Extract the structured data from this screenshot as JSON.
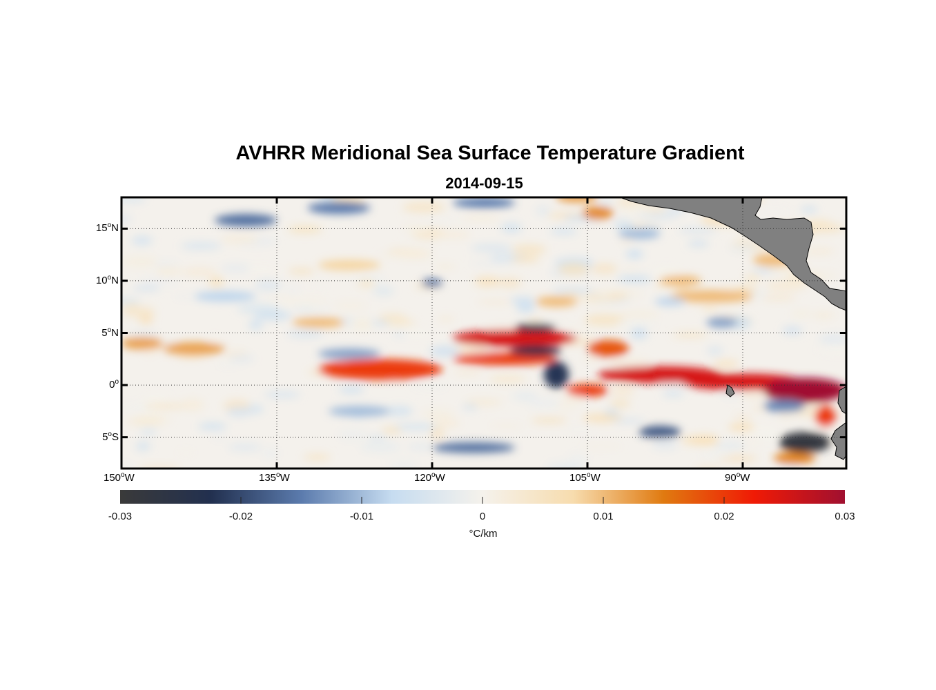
{
  "title": "AVHRR Meridional Sea Surface Temperature Gradient",
  "subtitle": "2014-09-15",
  "map": {
    "type": "heatmap",
    "variable_units": "°C/km",
    "lon_range": [
      -150,
      -80
    ],
    "lat_range": [
      -8,
      18
    ],
    "lat_ticks": [
      {
        "value": 15,
        "deg": "15",
        "hemi": "N"
      },
      {
        "value": 10,
        "deg": "10",
        "hemi": "N"
      },
      {
        "value": 5,
        "deg": "5",
        "hemi": "N"
      },
      {
        "value": 0,
        "deg": "0",
        "hemi": ""
      },
      {
        "value": -5,
        "deg": "5",
        "hemi": "S"
      }
    ],
    "lon_ticks": [
      {
        "value": -150,
        "deg": "150",
        "hemi": "W"
      },
      {
        "value": -135,
        "deg": "135",
        "hemi": "W"
      },
      {
        "value": -120,
        "deg": "120",
        "hemi": "W"
      },
      {
        "value": -105,
        "deg": "105",
        "hemi": "W"
      },
      {
        "value": -90,
        "deg": "90",
        "hemi": "W"
      }
    ],
    "grid": true,
    "land_color": "#808080",
    "colorbar": {
      "range": [
        -0.03,
        0.03
      ],
      "tick_values": [
        -0.03,
        -0.02,
        -0.01,
        0,
        0.01,
        0.02,
        0.03
      ],
      "tick_labels": [
        "-0.03",
        "-0.02",
        "-0.01",
        "0",
        "0.01",
        "0.02",
        "0.03"
      ],
      "label": "°C/km",
      "colors": [
        "#3a3a3a",
        "#22304f",
        "#5b7bad",
        "#c6dcf0",
        "#f5f2ec",
        "#f7dcae",
        "#e07a10",
        "#f01a05",
        "#a01030"
      ]
    },
    "features": [
      {
        "kind": "warm",
        "lon": -112,
        "lat": 4.5,
        "rlon": 6,
        "rlat": 0.8,
        "v": 0.025
      },
      {
        "kind": "warm",
        "lon": -113,
        "lat": 2.5,
        "rlon": 5,
        "rlat": 0.6,
        "v": 0.02
      },
      {
        "kind": "warm",
        "lon": -125,
        "lat": 1.5,
        "rlon": 6,
        "rlat": 1.0,
        "v": 0.02
      },
      {
        "kind": "warm",
        "lon": -98,
        "lat": 1.0,
        "rlon": 6,
        "rlat": 0.8,
        "v": 0.025
      },
      {
        "kind": "warm",
        "lon": -90,
        "lat": 0.3,
        "rlon": 6,
        "rlat": 0.8,
        "v": 0.025
      },
      {
        "kind": "warm",
        "lon": -84,
        "lat": -0.5,
        "rlon": 4,
        "rlat": 1.2,
        "v": 0.03
      },
      {
        "kind": "warm",
        "lon": -105,
        "lat": -0.5,
        "rlon": 2,
        "rlat": 0.6,
        "v": 0.02
      },
      {
        "kind": "warm",
        "lon": -103,
        "lat": 3.5,
        "rlon": 2,
        "rlat": 0.8,
        "v": 0.018
      },
      {
        "kind": "warm",
        "lon": -143,
        "lat": 3.5,
        "rlon": 3,
        "rlat": 0.6,
        "v": 0.012
      },
      {
        "kind": "warm",
        "lon": -148,
        "lat": 4,
        "rlon": 2,
        "rlat": 0.6,
        "v": 0.012
      },
      {
        "kind": "warm",
        "lon": -131,
        "lat": 6,
        "rlon": 2.5,
        "rlat": 0.5,
        "v": 0.01
      },
      {
        "kind": "warm",
        "lon": -104,
        "lat": 16.5,
        "rlon": 1.5,
        "rlat": 0.6,
        "v": 0.014
      },
      {
        "kind": "warm",
        "lon": -106,
        "lat": 18,
        "rlon": 2,
        "rlat": 0.5,
        "v": 0.012
      },
      {
        "kind": "warm",
        "lon": -93,
        "lat": 8.5,
        "rlon": 4,
        "rlat": 0.6,
        "v": 0.01
      },
      {
        "kind": "warm",
        "lon": -87,
        "lat": 12,
        "rlon": 2,
        "rlat": 0.6,
        "v": 0.01
      },
      {
        "kind": "warm",
        "lon": -108,
        "lat": 8,
        "rlon": 2,
        "rlat": 0.5,
        "v": 0.01
      },
      {
        "kind": "warm",
        "lon": -85,
        "lat": -7,
        "rlon": 2,
        "rlat": 0.6,
        "v": 0.014
      },
      {
        "kind": "warm",
        "lon": -82,
        "lat": -3,
        "rlon": 1,
        "rlat": 1.0,
        "v": 0.02
      },
      {
        "kind": "warm",
        "lon": -96,
        "lat": 10,
        "rlon": 2,
        "rlat": 0.5,
        "v": 0.01
      },
      {
        "kind": "warm",
        "lon": -128,
        "lat": 11.5,
        "rlon": 3,
        "rlat": 0.5,
        "v": 0.008
      },
      {
        "kind": "cold",
        "lon": -110,
        "lat": 5.5,
        "rlon": 2,
        "rlat": 0.4,
        "v": -0.025
      },
      {
        "kind": "cold",
        "lon": -110,
        "lat": 3.3,
        "rlon": 2.5,
        "rlat": 0.5,
        "v": -0.025
      },
      {
        "kind": "cold",
        "lon": -108,
        "lat": 1.0,
        "rlon": 1.2,
        "rlat": 1.3,
        "v": -0.022
      },
      {
        "kind": "cold",
        "lon": -84,
        "lat": -5.5,
        "rlon": 2.5,
        "rlat": 1.0,
        "v": -0.028
      },
      {
        "kind": "cold",
        "lon": -98,
        "lat": -4.5,
        "rlon": 2,
        "rlat": 0.6,
        "v": -0.018
      },
      {
        "kind": "cold",
        "lon": -138,
        "lat": 15.8,
        "rlon": 3,
        "rlat": 0.6,
        "v": -0.016
      },
      {
        "kind": "cold",
        "lon": -129,
        "lat": 17.0,
        "rlon": 3,
        "rlat": 0.6,
        "v": -0.015
      },
      {
        "kind": "cold",
        "lon": -115,
        "lat": 17.5,
        "rlon": 3,
        "rlat": 0.5,
        "v": -0.015
      },
      {
        "kind": "cold",
        "lon": -116,
        "lat": -6.0,
        "rlon": 4,
        "rlat": 0.5,
        "v": -0.016
      },
      {
        "kind": "cold",
        "lon": -128,
        "lat": 3.0,
        "rlon": 3,
        "rlat": 0.5,
        "v": -0.012
      },
      {
        "kind": "cold",
        "lon": -127,
        "lat": -2.5,
        "rlon": 3,
        "rlat": 0.5,
        "v": -0.01
      },
      {
        "kind": "cold",
        "lon": -120,
        "lat": 9.8,
        "rlon": 1,
        "rlat": 0.4,
        "v": -0.016
      },
      {
        "kind": "cold",
        "lon": -92,
        "lat": 6.0,
        "rlon": 1.5,
        "rlat": 0.5,
        "v": -0.012
      },
      {
        "kind": "cold",
        "lon": -100,
        "lat": 14.5,
        "rlon": 2,
        "rlat": 0.5,
        "v": -0.01
      },
      {
        "kind": "cold",
        "lon": -140,
        "lat": 8.5,
        "rlon": 3,
        "rlat": 0.5,
        "v": -0.008
      },
      {
        "kind": "cold",
        "lon": -97,
        "lat": 8.0,
        "rlon": 1.5,
        "rlat": 0.4,
        "v": -0.008
      },
      {
        "kind": "cold",
        "lon": -86,
        "lat": -2.0,
        "rlon": 2,
        "rlat": 0.6,
        "v": -0.014
      }
    ]
  }
}
